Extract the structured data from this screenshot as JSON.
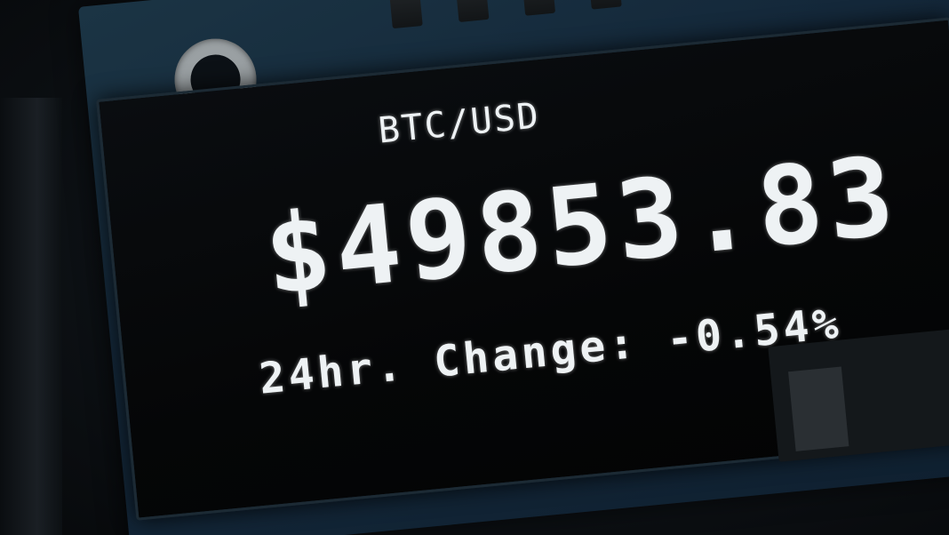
{
  "display": {
    "pair": "BTC/USD",
    "price": "$49853.83",
    "change_label": "24hr. Change:",
    "change_value": "-0.54%"
  },
  "colors": {
    "pixel_text": "#eef2f4",
    "screen_background": "#050607",
    "pcb": "#14283a"
  },
  "icons": [
    "mount-hole-icon"
  ]
}
